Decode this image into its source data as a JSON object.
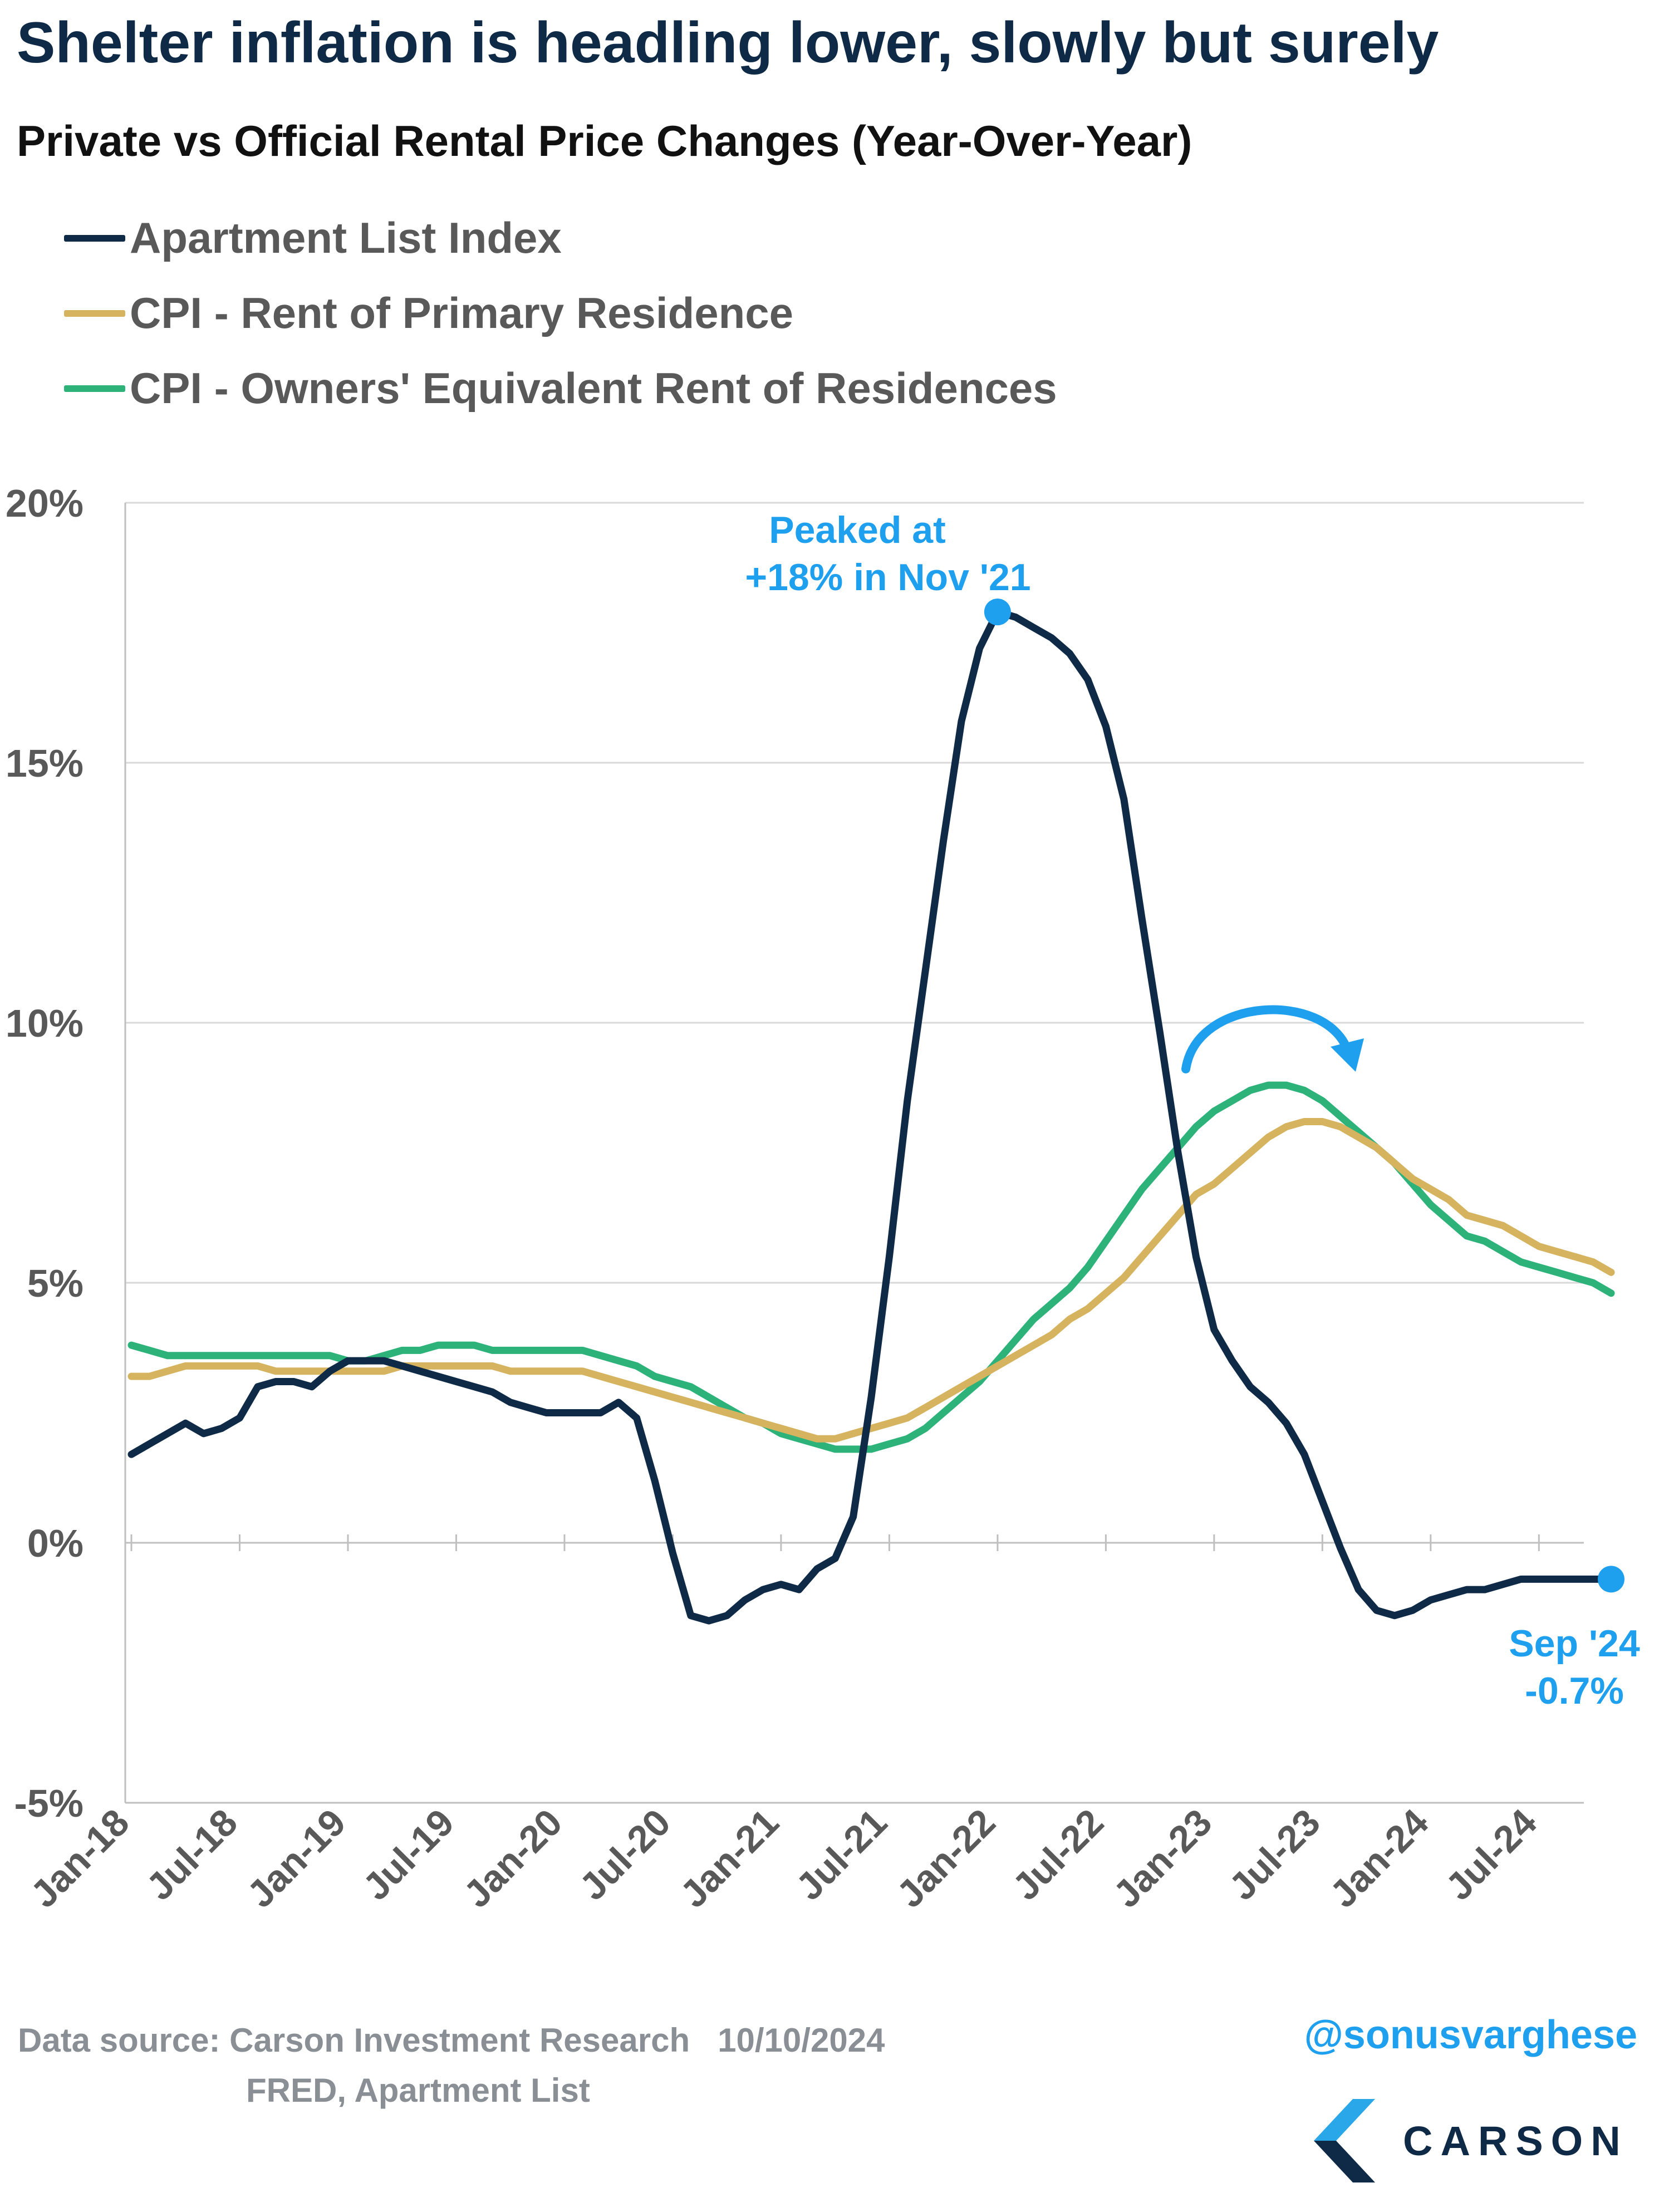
{
  "header": {
    "title": "Shelter inflation is headling lower, slowly but surely",
    "subtitle": "Private vs Official Rental Price Changes (Year-Over-Year)"
  },
  "legend": [
    {
      "label": "Apartment List Index",
      "color": "#0e2a47"
    },
    {
      "label": "CPI - Rent of Primary Residence",
      "color": "#d6b35f"
    },
    {
      "label": "CPI - Owners' Equivalent Rent of Residences",
      "color": "#2db37a"
    }
  ],
  "annotations": {
    "peak": {
      "line1": "Peaked at",
      "line2": "+18% in Nov '21"
    },
    "latest": {
      "line1": "Sep '24",
      "line2": "-0.7%"
    },
    "arrow_color": "#1ea0ef"
  },
  "footer": {
    "source_line1": "Data source: Carson Investment Research   10/10/2024",
    "source_line2": "FRED, Apartment List",
    "handle": "@sonusvarghese",
    "brand": "CARSON"
  },
  "chart_data": {
    "type": "line",
    "ylim": [
      -5,
      20
    ],
    "y_ticks": [
      -5,
      0,
      5,
      10,
      15,
      20
    ],
    "y_tick_labels": [
      "-5%",
      "0%",
      "5%",
      "10%",
      "15%",
      "20%"
    ],
    "x_tick_labels": [
      "Jan-18",
      "Jul-18",
      "Jan-19",
      "Jul-19",
      "Jan-20",
      "Jul-20",
      "Jan-21",
      "Jul-21",
      "Jan-22",
      "Jul-22",
      "Jan-23",
      "Jul-23",
      "Jan-24",
      "Jul-24"
    ],
    "x_start": "Jan-18",
    "x_end": "Sep-24",
    "grid": "horizontal",
    "series": [
      {
        "name": "Apartment List Index",
        "color": "#0e2a47",
        "values": [
          1.7,
          1.9,
          2.1,
          2.3,
          2.1,
          2.2,
          2.4,
          3.0,
          3.1,
          3.1,
          3.0,
          3.3,
          3.5,
          3.5,
          3.5,
          3.4,
          3.3,
          3.2,
          3.1,
          3.0,
          2.9,
          2.7,
          2.6,
          2.5,
          2.5,
          2.5,
          2.5,
          2.7,
          2.4,
          1.2,
          -0.2,
          -1.4,
          -1.5,
          -1.4,
          -1.1,
          -0.9,
          -0.8,
          -0.9,
          -0.5,
          -0.3,
          0.5,
          2.8,
          5.5,
          8.5,
          11.0,
          13.5,
          15.8,
          17.2,
          17.9,
          17.8,
          17.6,
          17.4,
          17.1,
          16.6,
          15.7,
          14.3,
          12.0,
          9.8,
          7.5,
          5.5,
          4.1,
          3.5,
          3.0,
          2.7,
          2.3,
          1.7,
          0.8,
          -0.1,
          -0.9,
          -1.3,
          -1.4,
          -1.3,
          -1.1,
          -1.0,
          -0.9,
          -0.9,
          -0.8,
          -0.7,
          -0.7,
          -0.7,
          -0.7,
          -0.7,
          -0.7
        ]
      },
      {
        "name": "CPI - Rent of Primary Residence",
        "color": "#d6b35f",
        "values": [
          3.2,
          3.2,
          3.3,
          3.4,
          3.4,
          3.4,
          3.4,
          3.4,
          3.3,
          3.3,
          3.3,
          3.3,
          3.3,
          3.3,
          3.3,
          3.4,
          3.4,
          3.4,
          3.4,
          3.4,
          3.4,
          3.3,
          3.3,
          3.3,
          3.3,
          3.3,
          3.2,
          3.1,
          3.0,
          2.9,
          2.8,
          2.7,
          2.6,
          2.5,
          2.4,
          2.3,
          2.2,
          2.1,
          2.0,
          2.0,
          2.1,
          2.2,
          2.3,
          2.4,
          2.6,
          2.8,
          3.0,
          3.2,
          3.4,
          3.6,
          3.8,
          4.0,
          4.3,
          4.5,
          4.8,
          5.1,
          5.5,
          5.9,
          6.3,
          6.7,
          6.9,
          7.2,
          7.5,
          7.8,
          8.0,
          8.1,
          8.1,
          8.0,
          7.8,
          7.6,
          7.3,
          7.0,
          6.8,
          6.6,
          6.3,
          6.2,
          6.1,
          5.9,
          5.7,
          5.6,
          5.5,
          5.4,
          5.2
        ]
      },
      {
        "name": "CPI - Owners' Equivalent Rent of Residences",
        "color": "#2db37a",
        "values": [
          3.8,
          3.7,
          3.6,
          3.6,
          3.6,
          3.6,
          3.6,
          3.6,
          3.6,
          3.6,
          3.6,
          3.6,
          3.5,
          3.5,
          3.6,
          3.7,
          3.7,
          3.8,
          3.8,
          3.8,
          3.7,
          3.7,
          3.7,
          3.7,
          3.7,
          3.7,
          3.6,
          3.5,
          3.4,
          3.2,
          3.1,
          3.0,
          2.8,
          2.6,
          2.4,
          2.3,
          2.1,
          2.0,
          1.9,
          1.8,
          1.8,
          1.8,
          1.9,
          2.0,
          2.2,
          2.5,
          2.8,
          3.1,
          3.5,
          3.9,
          4.3,
          4.6,
          4.9,
          5.3,
          5.8,
          6.3,
          6.8,
          7.2,
          7.6,
          8.0,
          8.3,
          8.5,
          8.7,
          8.8,
          8.8,
          8.7,
          8.5,
          8.2,
          7.9,
          7.6,
          7.3,
          6.9,
          6.5,
          6.2,
          5.9,
          5.8,
          5.6,
          5.4,
          5.3,
          5.2,
          5.1,
          5.0,
          4.8
        ]
      }
    ]
  }
}
